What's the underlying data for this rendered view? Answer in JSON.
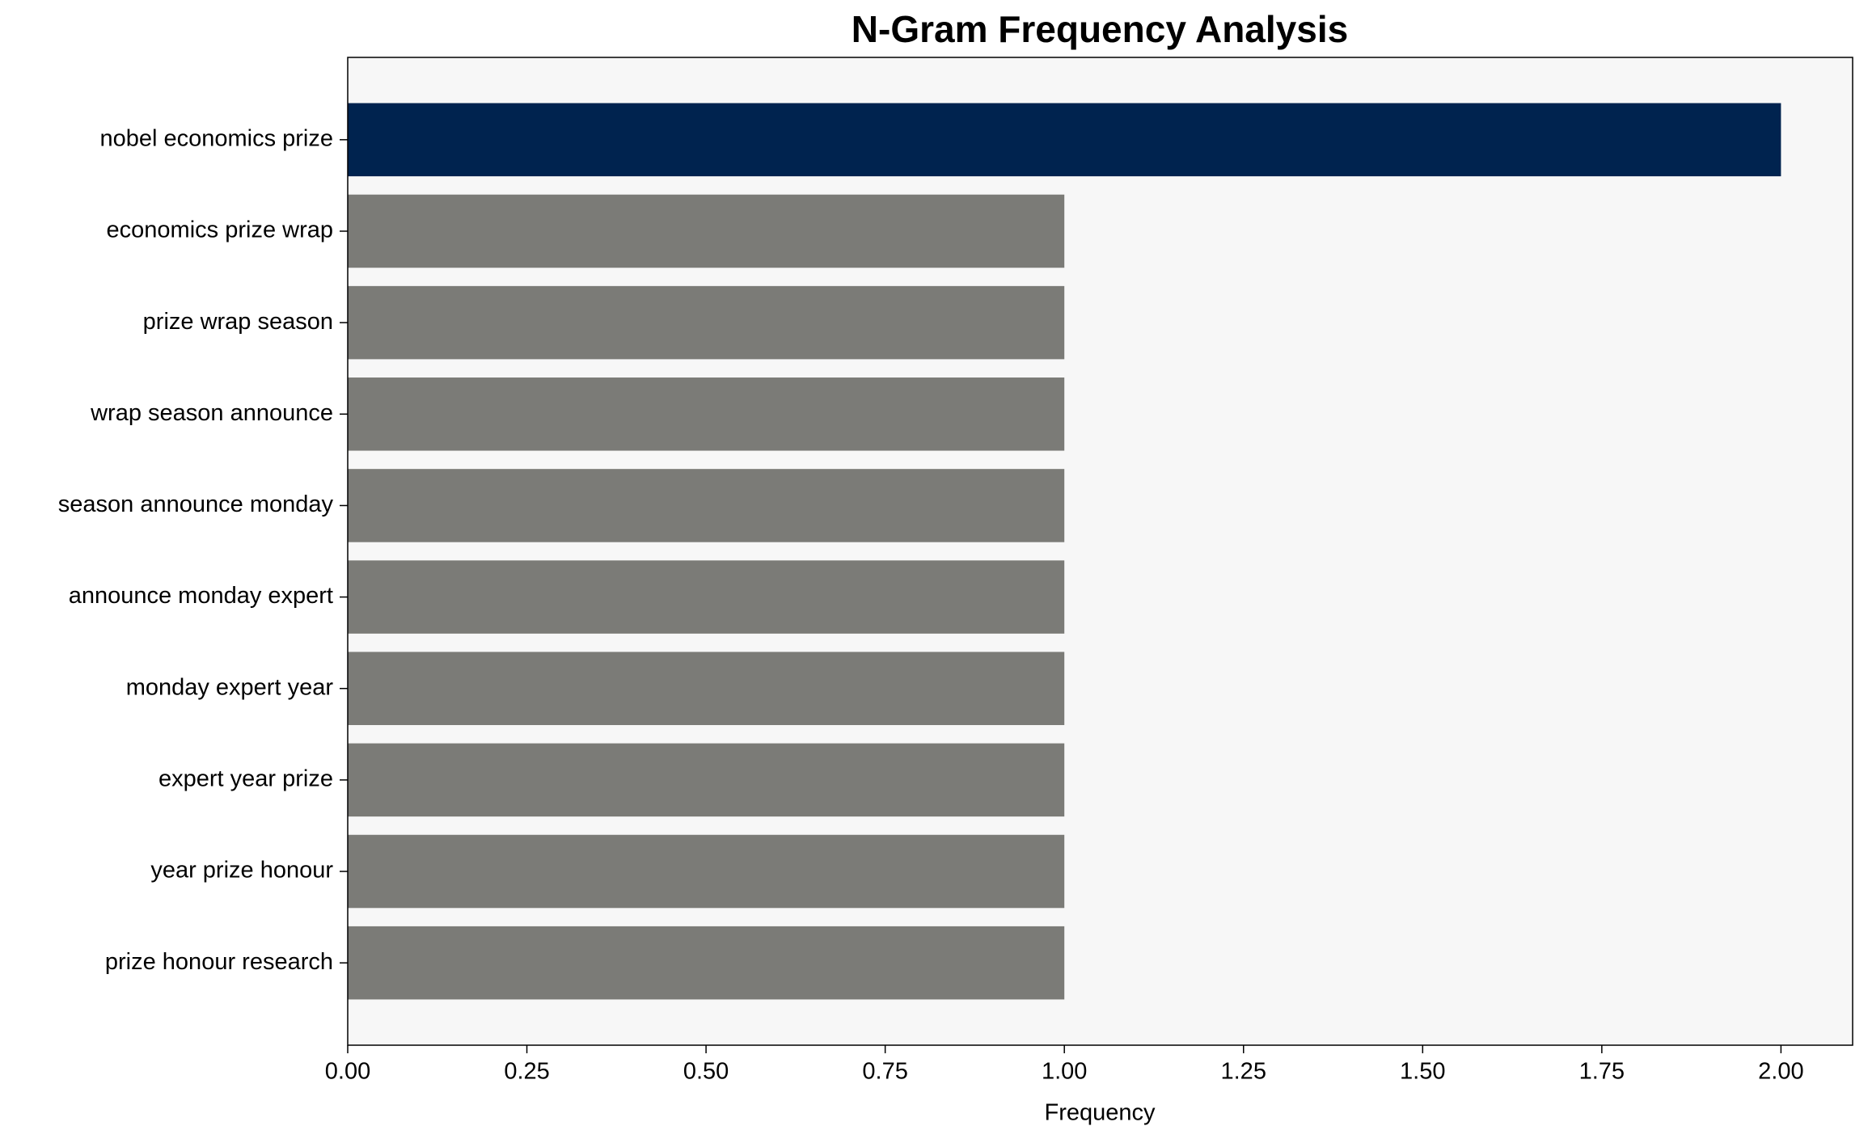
{
  "chart_data": {
    "type": "barh",
    "title": "N-Gram Frequency Analysis",
    "x_label": "Frequency",
    "categories": [
      "nobel economics prize",
      "economics prize wrap",
      "prize wrap season",
      "wrap season announce",
      "season announce monday",
      "announce monday expert",
      "monday expert year",
      "expert year prize",
      "year prize honour",
      "prize honour research"
    ],
    "values": [
      2,
      1,
      1,
      1,
      1,
      1,
      1,
      1,
      1,
      1
    ],
    "colors": [
      "#00234f",
      "#7b7b77",
      "#7b7b77",
      "#7b7b77",
      "#7b7b77",
      "#7b7b77",
      "#7b7b77",
      "#7b7b77",
      "#7b7b77",
      "#7b7b77"
    ],
    "xlim": [
      0,
      2.1
    ],
    "xticks": [
      {
        "value": 0,
        "label": "0.00"
      },
      0.25,
      {
        "value": 0.5,
        "label": "0.50"
      },
      0.75,
      {
        "value": 1,
        "label": "1.00"
      },
      1.25,
      {
        "value": 1.5,
        "label": "1.50"
      },
      1.75,
      {
        "value": 2,
        "label": "2.00"
      }
    ],
    "grid": false
  }
}
